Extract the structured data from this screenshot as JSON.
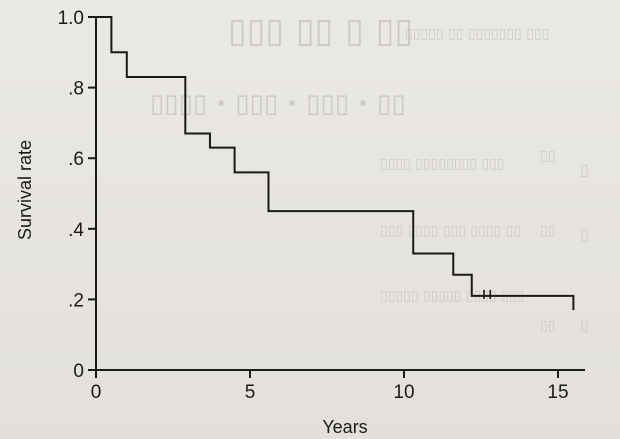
{
  "chart_data": {
    "type": "line",
    "subtype": "kaplan-meier-step",
    "title": "",
    "xlabel": "Years",
    "ylabel": "Survival rate",
    "xlim": [
      0,
      16
    ],
    "ylim": [
      0,
      1.0
    ],
    "x_ticks": [
      0,
      5,
      10,
      15
    ],
    "x_tick_labels": [
      "0",
      "5",
      "10",
      "15"
    ],
    "y_ticks": [
      0,
      0.2,
      0.4,
      0.6,
      0.8,
      1.0
    ],
    "y_tick_labels": [
      "0",
      ".2",
      ".4",
      ".6",
      ".8",
      "1.0"
    ],
    "grid": false,
    "legend": "none",
    "series": [
      {
        "x": [
          0,
          0.5,
          1.0,
          2.9,
          3.7,
          4.5,
          5.6,
          10.3,
          11.6,
          12.2,
          15.5
        ],
        "y": [
          1.0,
          0.9,
          0.83,
          0.67,
          0.63,
          0.56,
          0.45,
          0.33,
          0.27,
          0.21,
          0.21
        ],
        "censored_x": [
          12.6,
          12.8
        ]
      }
    ],
    "line_color": "#1a1a1a"
  }
}
